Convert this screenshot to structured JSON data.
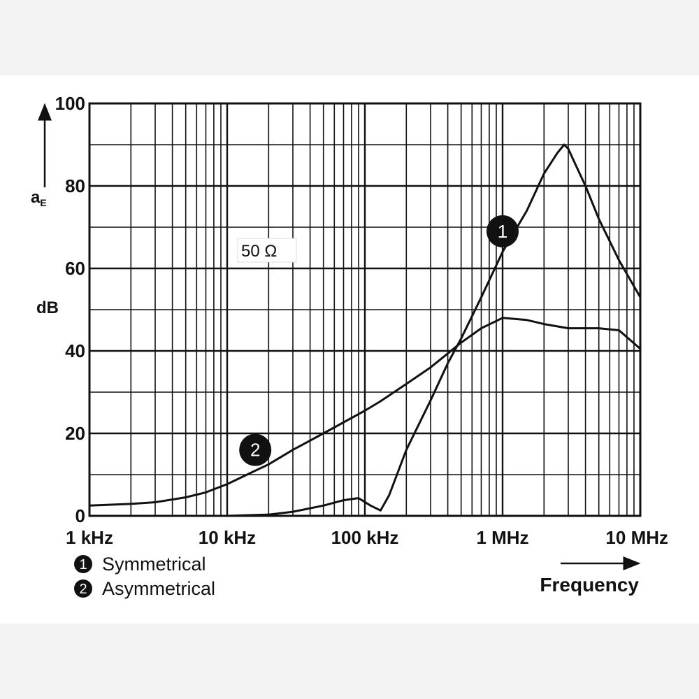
{
  "chart_data": {
    "type": "line",
    "x_scale": "log",
    "x_unit": "Hz",
    "xlabel": "Frequency",
    "ylabel_symbol": "a",
    "ylabel_subscript": "E",
    "ylabel_unit": "dB",
    "xlim": [
      1000,
      10000000
    ],
    "ylim": [
      0,
      100
    ],
    "x_ticks": [
      {
        "value": 1000,
        "label": "1 kHz"
      },
      {
        "value": 10000,
        "label": "10 kHz"
      },
      {
        "value": 100000,
        "label": "100 kHz"
      },
      {
        "value": 1000000,
        "label": "1 MHz"
      },
      {
        "value": 10000000,
        "label": "10 MHz"
      }
    ],
    "y_ticks": [
      {
        "value": 0,
        "label": "0"
      },
      {
        "value": 20,
        "label": "20"
      },
      {
        "value": 40,
        "label": "40"
      },
      {
        "value": 60,
        "label": "60"
      },
      {
        "value": 80,
        "label": "80"
      },
      {
        "value": 100,
        "label": "100"
      }
    ],
    "grid": true,
    "annotation": "50 Ω",
    "legend_position": "bottom-left",
    "legend": [
      {
        "marker": "1",
        "label": "Symmetrical"
      },
      {
        "marker": "2",
        "label": "Asymmetrical"
      }
    ],
    "series": [
      {
        "marker": "1",
        "name": "Symmetrical",
        "badge_at": {
          "x": 1000000,
          "y": 69
        },
        "points": [
          [
            1000,
            0
          ],
          [
            10000,
            0
          ],
          [
            20000,
            0.3
          ],
          [
            30000,
            1.0
          ],
          [
            50000,
            2.5
          ],
          [
            70000,
            3.8
          ],
          [
            90000,
            4.3
          ],
          [
            110000,
            2.5
          ],
          [
            130000,
            1.3
          ],
          [
            150000,
            5
          ],
          [
            200000,
            16
          ],
          [
            300000,
            28
          ],
          [
            400000,
            37
          ],
          [
            500000,
            43
          ],
          [
            700000,
            53
          ],
          [
            1000000,
            64
          ],
          [
            1500000,
            74
          ],
          [
            2000000,
            83
          ],
          [
            2500000,
            88
          ],
          [
            2800000,
            90
          ],
          [
            3000000,
            89
          ],
          [
            3300000,
            86
          ],
          [
            4000000,
            80
          ],
          [
            5000000,
            72
          ],
          [
            7000000,
            62
          ],
          [
            10000000,
            53
          ]
        ]
      },
      {
        "marker": "2",
        "name": "Asymmetrical",
        "badge_at": {
          "x": 16000,
          "y": 16
        },
        "points": [
          [
            1000,
            2.5
          ],
          [
            2000,
            2.9
          ],
          [
            3000,
            3.3
          ],
          [
            5000,
            4.5
          ],
          [
            7000,
            5.7
          ],
          [
            10000,
            7.7
          ],
          [
            15000,
            10.5
          ],
          [
            20000,
            12.5
          ],
          [
            30000,
            16
          ],
          [
            50000,
            20
          ],
          [
            100000,
            25.5
          ],
          [
            130000,
            27.8
          ],
          [
            200000,
            32
          ],
          [
            300000,
            36
          ],
          [
            500000,
            42
          ],
          [
            700000,
            45.5
          ],
          [
            1000000,
            48
          ],
          [
            1500000,
            47.5
          ],
          [
            2000000,
            46.5
          ],
          [
            3000000,
            45.5
          ],
          [
            5000000,
            45.5
          ],
          [
            7000000,
            45
          ],
          [
            10000000,
            40.5
          ]
        ]
      }
    ]
  }
}
